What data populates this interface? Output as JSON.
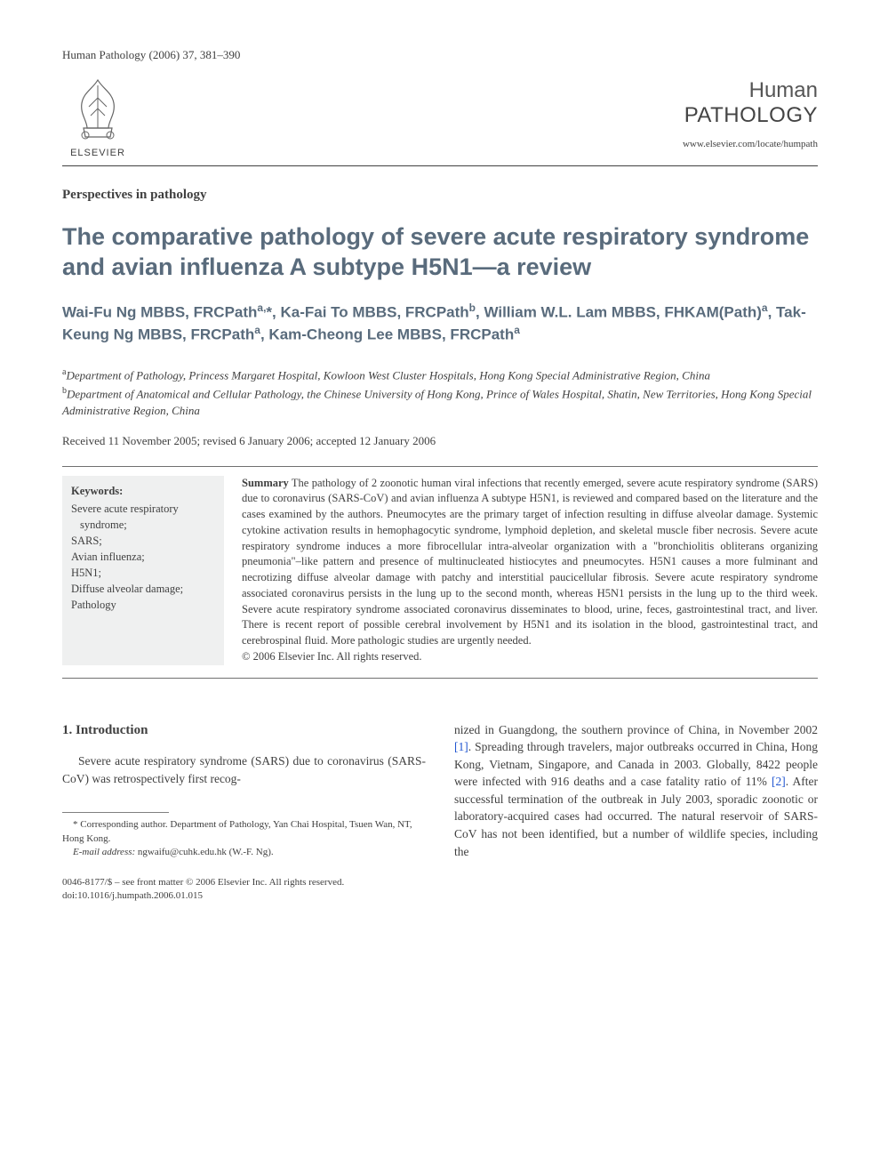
{
  "header": {
    "citation": "Human Pathology (2006) 37, 381–390",
    "publisher_label": "ELSEVIER",
    "journal_line1": "Human",
    "journal_line2": "PATHOLOGY",
    "journal_url": "www.elsevier.com/locate/humpath"
  },
  "article": {
    "type": "Perspectives in pathology",
    "title": "The comparative pathology of severe acute respiratory syndrome and avian influenza A subtype H5N1—a review",
    "authors_html": "Wai-Fu Ng MBBS, FRCPath<sup>a,</sup>*, Ka-Fai To MBBS, FRCPath<sup>b</sup>, William W.L. Lam MBBS, FHKAM(Path)<sup>a</sup>, Tak-Keung Ng MBBS, FRCPath<sup>a</sup>, Kam-Cheong Lee MBBS, FRCPath<sup>a</sup>",
    "affiliations": [
      {
        "sup": "a",
        "text": "Department of Pathology, Princess Margaret Hospital, Kowloon West Cluster Hospitals, Hong Kong Special Administrative Region, China"
      },
      {
        "sup": "b",
        "text": "Department of Anatomical and Cellular Pathology, the Chinese University of Hong Kong, Prince of Wales Hospital, Shatin, New Territories, Hong Kong Special Administrative Region, China"
      }
    ],
    "dates": "Received 11 November 2005; revised 6 January 2006; accepted 12 January 2006"
  },
  "keywords": {
    "label": "Keywords:",
    "items": "Severe acute respiratory syndrome;\nSARS;\nAvian influenza;\nH5N1;\nDiffuse alveolar damage;\nPathology"
  },
  "summary": {
    "label": "Summary",
    "text": " The pathology of 2 zoonotic human viral infections that recently emerged, severe acute respiratory syndrome (SARS) due to coronavirus (SARS-CoV) and avian influenza A subtype H5N1, is reviewed and compared based on the literature and the cases examined by the authors. Pneumocytes are the primary target of infection resulting in diffuse alveolar damage. Systemic cytokine activation results in hemophagocytic syndrome, lymphoid depletion, and skeletal muscle fiber necrosis. Severe acute respiratory syndrome induces a more fibrocellular intra-alveolar organization with a \"bronchiolitis obliterans organizing pneumonia\"–like pattern and presence of multinucleated histiocytes and pneumocytes. H5N1 causes a more fulminant and necrotizing diffuse alveolar damage with patchy and interstitial paucicellular fibrosis. Severe acute respiratory syndrome associated coronavirus persists in the lung up to the second month, whereas H5N1 persists in the lung up to the third week. Severe acute respiratory syndrome associated coronavirus disseminates to blood, urine, feces, gastrointestinal tract, and liver. There is recent report of possible cerebral involvement by H5N1 and its isolation in the blood, gastrointestinal tract, and cerebrospinal fluid. More pathologic studies are urgently needed.",
    "copyright": "© 2006 Elsevier Inc. All rights reserved."
  },
  "body": {
    "section_heading": "1. Introduction",
    "col1_para": "Severe acute respiratory syndrome (SARS) due to coronavirus (SARS-CoV) was retrospectively first recog-",
    "col2_para_pre": "nized in Guangdong, the southern province of China, in November 2002 ",
    "cite1": "[1]",
    "col2_para_mid": ". Spreading through travelers, major outbreaks occurred in China, Hong Kong, Vietnam, Singapore, and Canada in 2003. Globally, 8422 people were infected with 916 deaths and a case fatality ratio of 11% ",
    "cite2": "[2]",
    "col2_para_post": ". After successful termination of the outbreak in July 2003, sporadic zoonotic or laboratory-acquired cases had occurred. The natural reservoir of SARS-CoV has not been identified, but a number of wildlife species, including the"
  },
  "footnotes": {
    "corr": "* Corresponding author. Department of Pathology, Yan Chai Hospital, Tsuen Wan, NT, Hong Kong.",
    "email_label": "E-mail address:",
    "email": " ngwaifu@cuhk.edu.hk (W.-F. Ng)."
  },
  "footer": {
    "line1": "0046-8177/$ – see front matter © 2006 Elsevier Inc. All rights reserved.",
    "line2": "doi:10.1016/j.humpath.2006.01.015"
  },
  "colors": {
    "title_color": "#596b7c",
    "text_color": "#3f3f3f",
    "cite_color": "#2156d1",
    "keyword_bg": "#eff0f0",
    "rule_color": "#404040"
  }
}
